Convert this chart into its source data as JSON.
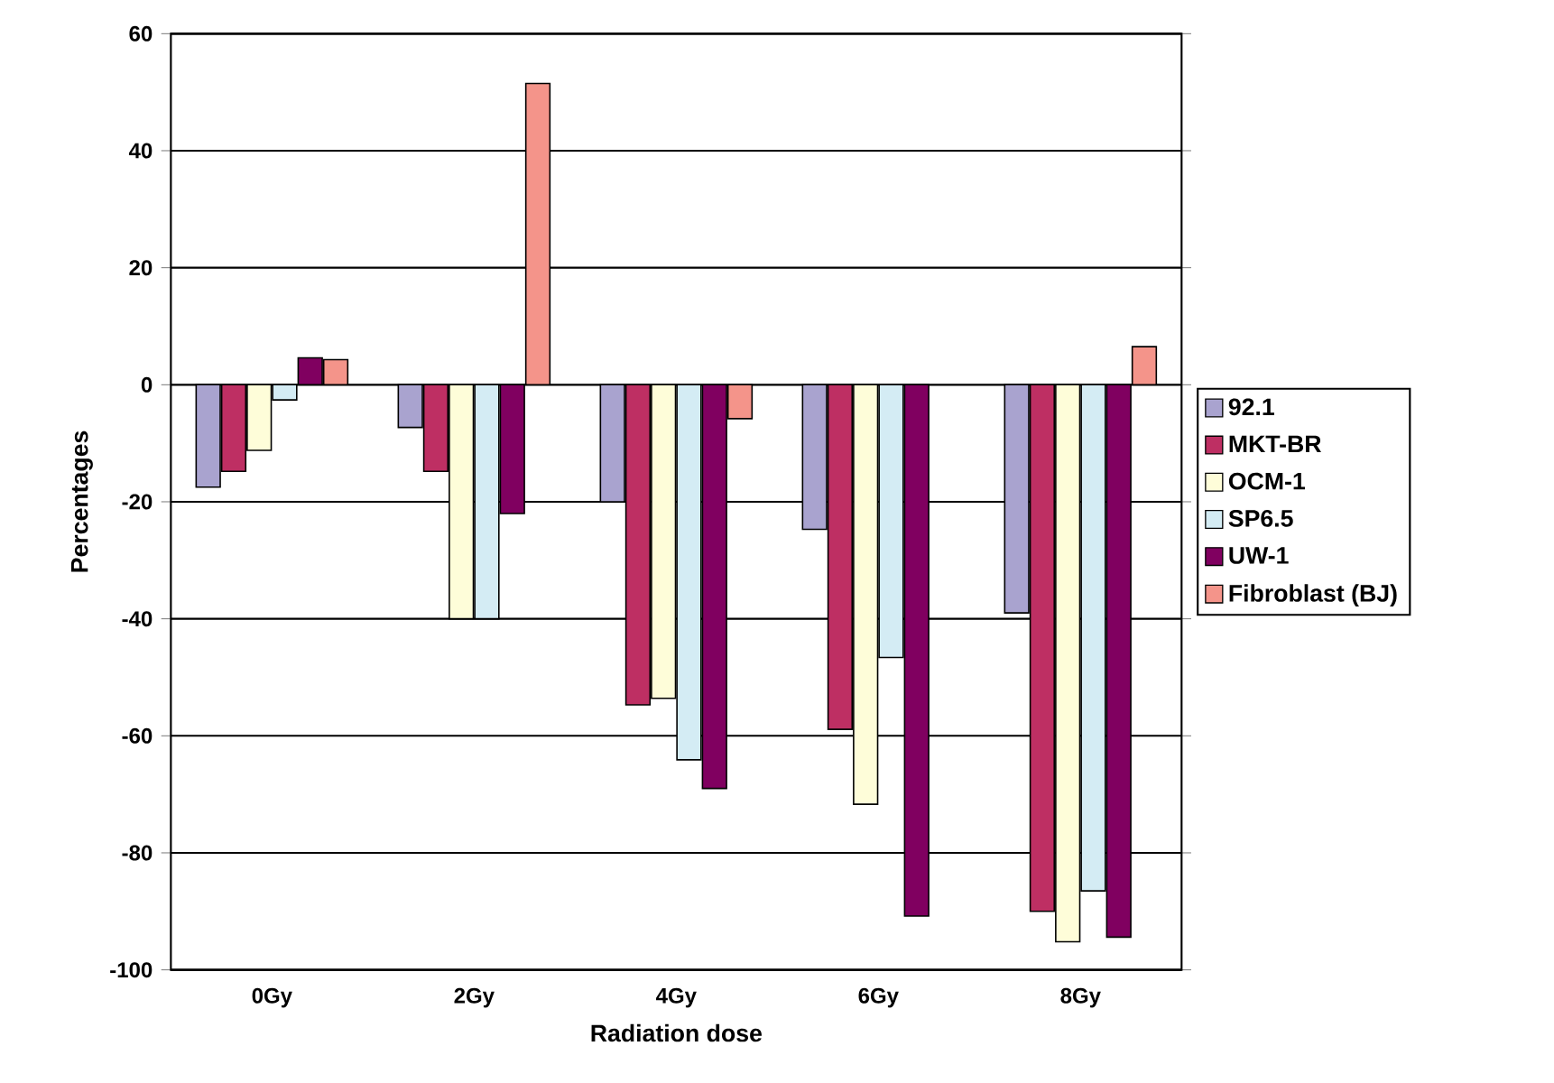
{
  "chart_data": {
    "type": "bar",
    "xlabel": "Radiation dose",
    "ylabel": "Percentages",
    "categories": [
      "0Gy",
      "2Gy",
      "4Gy",
      "6Gy",
      "8Gy"
    ],
    "series": [
      {
        "name": "92.1",
        "color": "#a9a3cf",
        "values": [
          -17.5,
          -7.3,
          -20,
          -24.7,
          -39
        ]
      },
      {
        "name": "MKT-BR",
        "color": "#be2f63",
        "values": [
          -14.8,
          -14.8,
          -54.7,
          -58.9,
          -90
        ]
      },
      {
        "name": "OCM-1",
        "color": "#fefdd9",
        "values": [
          -11.2,
          -40,
          -53.6,
          -71.7,
          -95.2
        ]
      },
      {
        "name": "SP6.5",
        "color": "#d4ecf4",
        "values": [
          -2.6,
          -40,
          -64.1,
          -46.6,
          -86.5
        ]
      },
      {
        "name": "UW-1",
        "color": "#800060",
        "values": [
          4.6,
          -22,
          -69,
          -90.8,
          -94.4
        ]
      },
      {
        "name": "Fibroblast (BJ)",
        "color": "#f4948a",
        "values": [
          4.3,
          51.5,
          -5.8,
          null,
          6.5
        ]
      }
    ],
    "ylim": [
      -100,
      60
    ],
    "yticks": [
      -100,
      -80,
      -60,
      -40,
      -20,
      0,
      20,
      40,
      60
    ],
    "grid": "y",
    "legend": "right"
  }
}
